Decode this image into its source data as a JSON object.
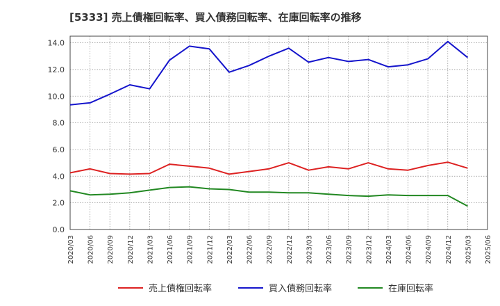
{
  "chart_data": {
    "type": "line",
    "title": "[5333]  売上債権回転率、買入債務回転率、在庫回転率の推移",
    "xlabel": "",
    "ylabel": "",
    "ylim": [
      0.0,
      14.5
    ],
    "yticks": [
      "0.0",
      "2.0",
      "4.0",
      "6.0",
      "8.0",
      "10.0",
      "12.0",
      "14.0"
    ],
    "ytick_values": [
      0,
      2,
      4,
      6,
      8,
      10,
      12,
      14
    ],
    "categories": [
      "2020/03",
      "2020/06",
      "2020/09",
      "2020/12",
      "2021/03",
      "2021/06",
      "2021/09",
      "2021/12",
      "2022/03",
      "2022/06",
      "2022/09",
      "2022/12",
      "2023/03",
      "2023/06",
      "2023/09",
      "2023/12",
      "2024/03",
      "2024/06",
      "2024/09",
      "2024/12",
      "2025/03",
      "2025/06"
    ],
    "grid": true,
    "legend_position": "bottom",
    "series": [
      {
        "name": "売上債権回転率",
        "color": "#dd2222",
        "values": [
          4.25,
          4.55,
          4.2,
          4.15,
          4.2,
          4.9,
          4.75,
          4.6,
          4.15,
          4.35,
          4.55,
          5.0,
          4.45,
          4.7,
          4.55,
          5.0,
          4.55,
          4.45,
          4.8,
          5.05,
          4.6,
          null
        ]
      },
      {
        "name": "買入債務回転率",
        "color": "#1515cc",
        "values": [
          9.35,
          9.5,
          10.15,
          10.85,
          10.55,
          12.7,
          13.75,
          13.55,
          11.8,
          12.3,
          13.0,
          13.6,
          12.55,
          12.9,
          12.6,
          12.75,
          12.2,
          12.35,
          12.8,
          14.1,
          12.9,
          null
        ]
      },
      {
        "name": "在庫回転率",
        "color": "#228822",
        "values": [
          2.9,
          2.6,
          2.65,
          2.75,
          2.95,
          3.15,
          3.2,
          3.05,
          3.0,
          2.8,
          2.8,
          2.75,
          2.75,
          2.65,
          2.55,
          2.5,
          2.6,
          2.55,
          2.55,
          2.55,
          1.75,
          null
        ]
      }
    ]
  }
}
